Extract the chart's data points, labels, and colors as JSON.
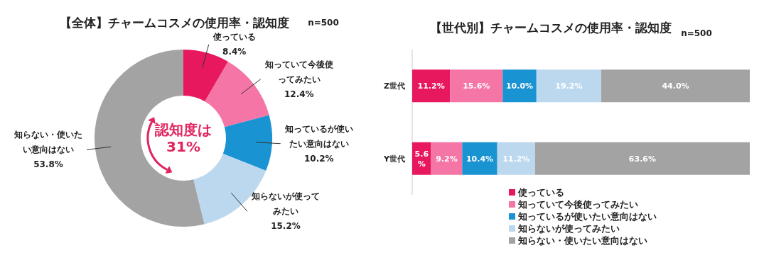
{
  "chart_data": [
    {
      "type": "donut",
      "title": "【全体】チャームコスメの使用率・認知度",
      "subtitle": "n=500",
      "categories": [
        "使っている",
        "知っていて今後使ってみたい",
        "知っているが使いたい意向はない",
        "知らないが使ってみたい",
        "知らない・使いたい意向はない"
      ],
      "values": [
        8.4,
        12.4,
        10.2,
        15.2,
        53.8
      ],
      "value_labels": [
        "8.4%",
        "12.4%",
        "10.2%",
        "15.2%",
        "53.8%"
      ],
      "colors": [
        "#e8185e",
        "#f475a6",
        "#1a93d2",
        "#bcd8ef",
        "#a3a3a3"
      ],
      "annotations": [
        "認知度は\n31%"
      ]
    },
    {
      "type": "bar",
      "orientation": "horizontal",
      "stacked": true,
      "title": "【世代別】チャームコスメの使用率・認知度",
      "subtitle": "n=500",
      "legend": "bottom",
      "categories": [
        "Z世代",
        "Y世代"
      ],
      "series": [
        {
          "name": "使っている",
          "color": "#e8185e",
          "values": [
            11.2,
            5.6
          ],
          "value_labels": [
            "11.2%",
            "5.6%"
          ]
        },
        {
          "name": "知っていて今後使ってみたい",
          "color": "#f475a6",
          "values": [
            15.6,
            9.2
          ],
          "value_labels": [
            "15.6%",
            "9.2%"
          ]
        },
        {
          "name": "知っているが使いたい意向はない",
          "color": "#1a93d2",
          "values": [
            10.0,
            10.4
          ],
          "value_labels": [
            "10.0%",
            "10.4%"
          ]
        },
        {
          "name": "知らないが使ってみたい",
          "color": "#bcd8ef",
          "values": [
            19.2,
            11.2
          ],
          "value_labels": [
            "19.2%",
            "11.2%"
          ]
        },
        {
          "name": "知らない・使いたい意向はない",
          "color": "#a3a3a3",
          "values": [
            44.0,
            63.6
          ],
          "value_labels": [
            "44.0%",
            "63.6%"
          ]
        }
      ]
    }
  ]
}
